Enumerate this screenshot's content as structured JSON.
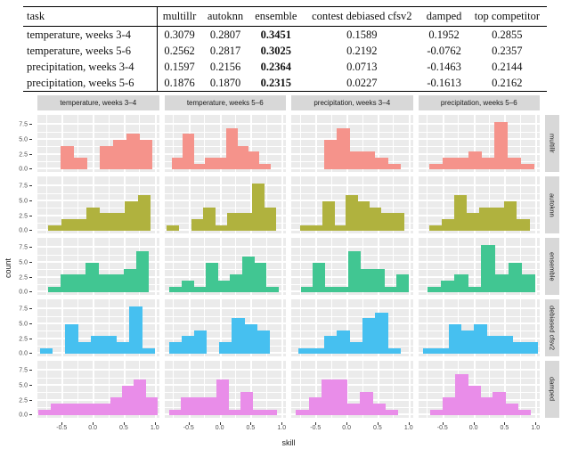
{
  "chart_data": [
    {
      "type": "table",
      "columns": [
        "task",
        "multillr",
        "autoknn",
        "ensemble",
        "contest debiased cfsv2",
        "damped",
        "top competitor"
      ],
      "bold_column_index": 3,
      "rows": [
        [
          "temperature, weeks 3-4",
          "0.3079",
          "0.2807",
          "0.3451",
          "0.1589",
          "0.1952",
          "0.2855"
        ],
        [
          "temperature, weeks 5-6",
          "0.2562",
          "0.2817",
          "0.3025",
          "0.2192",
          "-0.0762",
          "0.2357"
        ],
        [
          "precipitation, weeks 3-4",
          "0.1597",
          "0.2156",
          "0.2364",
          "0.0713",
          "-0.1463",
          "0.2144"
        ],
        [
          "precipitation, weeks 5-6",
          "0.1876",
          "0.1870",
          "0.2315",
          "0.0227",
          "-0.1613",
          "0.2162"
        ]
      ]
    },
    {
      "type": "bar",
      "variant": "faceted-histogram-grid",
      "xlabel": "skill",
      "ylabel": "count",
      "x_tick_labels": [
        "-0.5",
        "0.0",
        "0.5",
        "1.0"
      ],
      "x_tick_pcts": [
        20,
        45.5,
        71,
        96.5
      ],
      "y_tick_labels": [
        "0.0",
        "2.5",
        "5.0",
        "7.5"
      ],
      "y_ticks": [
        0,
        2.5,
        5,
        7.5
      ],
      "ylim": [
        0,
        8.8
      ],
      "facet_columns": [
        "temperature, weeks 3–4",
        "temperature, weeks 5–6",
        "precipitation, weeks 3–4",
        "precipitation, weeks 5–6"
      ],
      "facet_rows": [
        "multillr",
        "autoknn",
        "ensemble",
        "debiased cfsv2",
        "damped"
      ],
      "row_colors": [
        "#f5938b",
        "#b0b23e",
        "#41c692",
        "#46c0f0",
        "#e98de9"
      ],
      "panel_bg": "#ebebeb",
      "strip_bg": "#d8d8d8",
      "panels": [
        {
          "row": "multillr",
          "col": "temperature, weeks 3–4",
          "offset_pct": 19,
          "bin_pct": 10.8,
          "counts": [
            4,
            2,
            0,
            4,
            5,
            6,
            5
          ]
        },
        {
          "row": "multillr",
          "col": "temperature, weeks 5–6",
          "offset_pct": 6,
          "bin_pct": 9.0,
          "counts": [
            2,
            6,
            1,
            2,
            2,
            7,
            4,
            3,
            1
          ]
        },
        {
          "row": "multillr",
          "col": "precipitation, weeks 3–4",
          "offset_pct": 27,
          "bin_pct": 10.5,
          "counts": [
            5,
            7,
            3,
            3,
            2,
            1
          ]
        },
        {
          "row": "multillr",
          "col": "precipitation, weeks 5–6",
          "offset_pct": 9,
          "bin_pct": 10.8,
          "counts": [
            1,
            2,
            2,
            3,
            2,
            8,
            2,
            1
          ]
        },
        {
          "row": "autoknn",
          "col": "temperature, weeks 3–4",
          "offset_pct": 9,
          "bin_pct": 10.5,
          "counts": [
            1,
            2,
            2,
            4,
            3,
            3,
            5,
            6
          ]
        },
        {
          "row": "autoknn",
          "col": "temperature, weeks 5–6",
          "offset_pct": 2,
          "bin_pct": 10.0,
          "counts": [
            1,
            0,
            2,
            4,
            1,
            3,
            3,
            8,
            4
          ]
        },
        {
          "row": "autoknn",
          "col": "precipitation, weeks 3–4",
          "offset_pct": 7,
          "bin_pct": 9.5,
          "counts": [
            1,
            1,
            5,
            1,
            6,
            5,
            4,
            3,
            3
          ]
        },
        {
          "row": "autoknn",
          "col": "precipitation, weeks 5–6",
          "offset_pct": 9,
          "bin_pct": 10.3,
          "counts": [
            1,
            2,
            6,
            3,
            4,
            4,
            5,
            2
          ]
        },
        {
          "row": "ensemble",
          "col": "temperature, weeks 3–4",
          "offset_pct": 9,
          "bin_pct": 10.3,
          "counts": [
            1,
            3,
            3,
            5,
            3,
            3,
            4,
            7
          ]
        },
        {
          "row": "ensemble",
          "col": "temperature, weeks 5–6",
          "offset_pct": 4,
          "bin_pct": 10.0,
          "counts": [
            1,
            2,
            1,
            5,
            2,
            3,
            6,
            5,
            1
          ]
        },
        {
          "row": "ensemble",
          "col": "precipitation, weeks 3–4",
          "offset_pct": 8,
          "bin_pct": 9.8,
          "counts": [
            1,
            5,
            1,
            1,
            7,
            4,
            4,
            1,
            3
          ]
        },
        {
          "row": "ensemble",
          "col": "precipitation, weeks 5–6",
          "offset_pct": 8,
          "bin_pct": 11.0,
          "counts": [
            1,
            2,
            3,
            1,
            8,
            3,
            5,
            3
          ]
        },
        {
          "row": "debiased cfsv2",
          "col": "temperature, weeks 3–4",
          "offset_pct": 2,
          "bin_pct": 10.5,
          "counts": [
            1,
            0,
            5,
            2,
            3,
            3,
            2,
            8,
            1
          ]
        },
        {
          "row": "debiased cfsv2",
          "col": "temperature, weeks 5–6",
          "offset_pct": 4,
          "bin_pct": 10.3,
          "counts": [
            2,
            3,
            4,
            0,
            2,
            6,
            5,
            4
          ]
        },
        {
          "row": "debiased cfsv2",
          "col": "precipitation, weeks 3–4",
          "offset_pct": 6,
          "bin_pct": 10.5,
          "counts": [
            1,
            1,
            3,
            4,
            2,
            6,
            7,
            1
          ]
        },
        {
          "row": "debiased cfsv2",
          "col": "precipitation, weeks 5–6",
          "offset_pct": 4,
          "bin_pct": 10.5,
          "counts": [
            1,
            1,
            5,
            4,
            5,
            3,
            3,
            2,
            2
          ]
        },
        {
          "row": "damped",
          "col": "temperature, weeks 3–4",
          "offset_pct": 1,
          "bin_pct": 9.8,
          "counts": [
            1,
            2,
            2,
            2,
            2,
            2,
            3,
            5,
            6,
            3
          ]
        },
        {
          "row": "damped",
          "col": "temperature, weeks 5–6",
          "offset_pct": 4,
          "bin_pct": 9.8,
          "counts": [
            1,
            3,
            3,
            3,
            6,
            1,
            4,
            1,
            1
          ]
        },
        {
          "row": "damped",
          "col": "precipitation, weeks 3–4",
          "offset_pct": 4,
          "bin_pct": 10.5,
          "counts": [
            1,
            3,
            6,
            6,
            2,
            4,
            2,
            1
          ]
        },
        {
          "row": "damped",
          "col": "precipitation, weeks 5–6",
          "offset_pct": 10,
          "bin_pct": 10.3,
          "counts": [
            1,
            3,
            7,
            5,
            3,
            4,
            2,
            1
          ]
        }
      ]
    }
  ]
}
